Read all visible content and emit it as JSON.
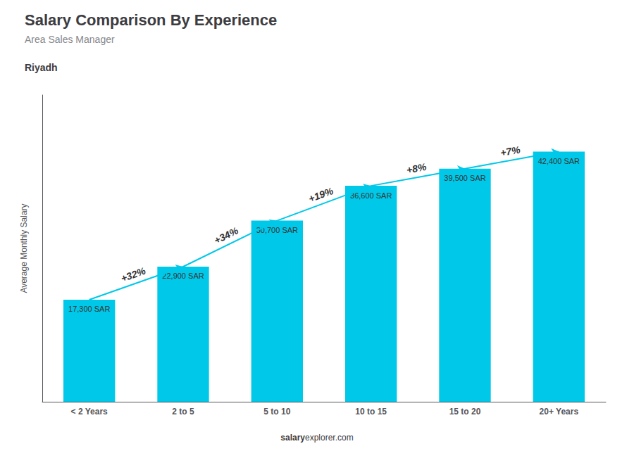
{
  "chart_data": {
    "type": "bar",
    "title": "Salary Comparison By Experience",
    "subtitle": "Area Sales Manager",
    "city": "Riyadh",
    "categories": [
      "< 2 Years",
      "2 to 5",
      "5 to 10",
      "10 to 15",
      "15 to 20",
      "20+ Years"
    ],
    "values": [
      17300,
      22900,
      30700,
      36600,
      39500,
      42400
    ],
    "value_labels": [
      "17,300 SAR",
      "22,900 SAR",
      "30,700 SAR",
      "36,600 SAR",
      "39,500 SAR",
      "42,400 SAR"
    ],
    "data_labels": true,
    "color": "#00c8e8",
    "ylabel": "Average Monthly Salary",
    "ylim": [
      0,
      52000
    ],
    "yticks": [],
    "tick_labels": "x",
    "grid": false,
    "annotations": [
      {
        "text": "+32%",
        "from": "< 2 Years",
        "to": "2 to 5"
      },
      {
        "text": "+34%",
        "from": "2 to 5",
        "to": "5 to 10"
      },
      {
        "text": "+19%",
        "from": "5 to 10",
        "to": "10 to 15"
      },
      {
        "text": "+8%",
        "from": "10 to 15",
        "to": "15 to 20"
      },
      {
        "text": "+7%",
        "from": "15 to 20",
        "to": "20+ Years"
      }
    ],
    "footer": [
      "salary",
      "explorer.com"
    ]
  }
}
